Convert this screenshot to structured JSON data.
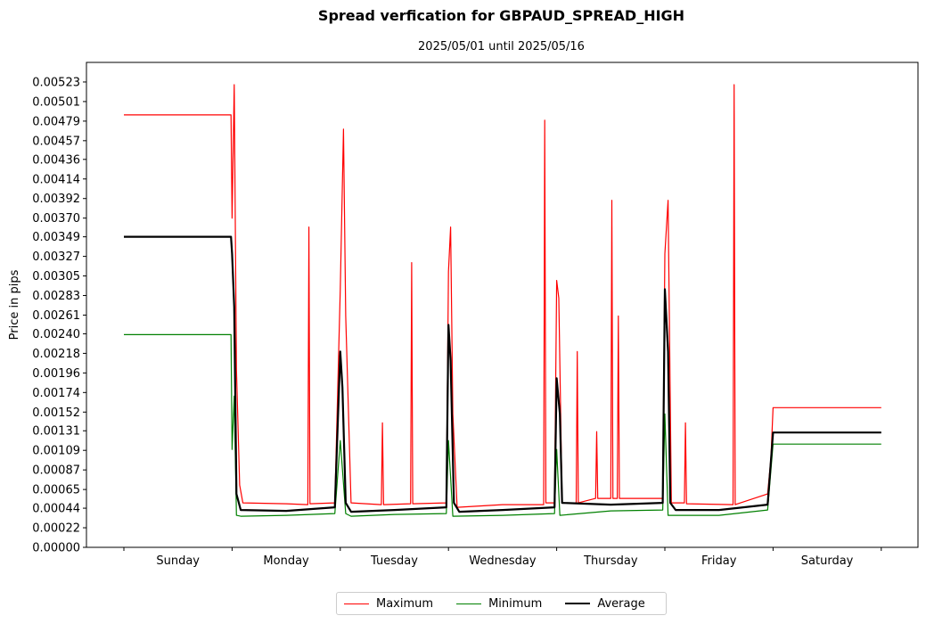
{
  "chart_data": {
    "type": "line",
    "title": "Spread verfication for GBPAUD_SPREAD_HIGH",
    "subtitle": "2025/05/01 until 2025/05/16",
    "xlabel": "",
    "ylabel": "Price in pips",
    "categories": [
      "Sunday",
      "Monday",
      "Tuesday",
      "Wednesday",
      "Thursday",
      "Friday",
      "Saturday"
    ],
    "xlim": [
      0,
      7
    ],
    "ylim": [
      0,
      0.00545
    ],
    "yticks": [
      "0.00000",
      "0.00022",
      "0.00044",
      "0.00065",
      "0.00087",
      "0.00109",
      "0.00131",
      "0.00152",
      "0.00174",
      "0.00196",
      "0.00218",
      "0.00240",
      "0.00261",
      "0.00283",
      "0.00305",
      "0.00327",
      "0.00349",
      "0.00370",
      "0.00392",
      "0.00414",
      "0.00436",
      "0.00457",
      "0.00479",
      "0.00501",
      "0.00523"
    ],
    "series": [
      {
        "name": "Maximum",
        "color": "#ff0000",
        "width": 1.2,
        "points": [
          [
            0,
            0.00486
          ],
          [
            0.99,
            0.00486
          ],
          [
            1.0,
            0.0037
          ],
          [
            1.02,
            0.0052
          ],
          [
            1.04,
            0.002
          ],
          [
            1.07,
            0.0007
          ],
          [
            1.1,
            0.0005
          ],
          [
            1.5,
            0.00049
          ],
          [
            1.7,
            0.00048
          ],
          [
            1.71,
            0.0036
          ],
          [
            1.72,
            0.00049
          ],
          [
            1.95,
            0.0005
          ],
          [
            2.0,
            0.0029
          ],
          [
            2.03,
            0.0047
          ],
          [
            2.05,
            0.0026
          ],
          [
            2.1,
            0.0005
          ],
          [
            2.38,
            0.00048
          ],
          [
            2.39,
            0.0014
          ],
          [
            2.4,
            0.00048
          ],
          [
            2.65,
            0.00049
          ],
          [
            2.66,
            0.0032
          ],
          [
            2.67,
            0.00049
          ],
          [
            2.98,
            0.0005
          ],
          [
            3.0,
            0.0031
          ],
          [
            3.02,
            0.0036
          ],
          [
            3.04,
            0.0015
          ],
          [
            3.08,
            0.00045
          ],
          [
            3.5,
            0.00048
          ],
          [
            3.88,
            0.00048
          ],
          [
            3.89,
            0.0048
          ],
          [
            3.9,
            0.0005
          ],
          [
            3.98,
            0.0005
          ],
          [
            4.0,
            0.003
          ],
          [
            4.02,
            0.0028
          ],
          [
            4.05,
            0.0005
          ],
          [
            4.18,
            0.0005
          ],
          [
            4.19,
            0.0022
          ],
          [
            4.2,
            0.0005
          ],
          [
            4.36,
            0.00055
          ],
          [
            4.37,
            0.0013
          ],
          [
            4.38,
            0.00055
          ],
          [
            4.5,
            0.00055
          ],
          [
            4.51,
            0.0039
          ],
          [
            4.52,
            0.00055
          ],
          [
            4.56,
            0.00055
          ],
          [
            4.57,
            0.0026
          ],
          [
            4.58,
            0.00055
          ],
          [
            4.98,
            0.00055
          ],
          [
            5.0,
            0.0033
          ],
          [
            5.03,
            0.0039
          ],
          [
            5.06,
            0.0005
          ],
          [
            5.18,
            0.0005
          ],
          [
            5.19,
            0.0014
          ],
          [
            5.2,
            0.00049
          ],
          [
            5.63,
            0.00048
          ],
          [
            5.64,
            0.0052
          ],
          [
            5.65,
            0.00048
          ],
          [
            5.95,
            0.0006
          ],
          [
            5.98,
            0.001
          ],
          [
            6.0,
            0.00157
          ],
          [
            7.0,
            0.00157
          ]
        ]
      },
      {
        "name": "Minimum",
        "color": "#008000",
        "width": 1.2,
        "points": [
          [
            0,
            0.00239
          ],
          [
            0.99,
            0.00239
          ],
          [
            1.0,
            0.0011
          ],
          [
            1.02,
            0.0017
          ],
          [
            1.04,
            0.00036
          ],
          [
            1.08,
            0.00035
          ],
          [
            1.5,
            0.00036
          ],
          [
            1.95,
            0.00038
          ],
          [
            2.0,
            0.0012
          ],
          [
            2.05,
            0.00038
          ],
          [
            2.1,
            0.00035
          ],
          [
            2.5,
            0.00037
          ],
          [
            2.98,
            0.00038
          ],
          [
            3.0,
            0.0012
          ],
          [
            3.04,
            0.00035
          ],
          [
            3.5,
            0.00036
          ],
          [
            3.98,
            0.00038
          ],
          [
            4.0,
            0.0011
          ],
          [
            4.03,
            0.00036
          ],
          [
            4.5,
            0.00041
          ],
          [
            4.98,
            0.00042
          ],
          [
            5.0,
            0.0015
          ],
          [
            5.03,
            0.00036
          ],
          [
            5.5,
            0.00036
          ],
          [
            5.95,
            0.00042
          ],
          [
            6.0,
            0.00116
          ],
          [
            7.0,
            0.00116
          ]
        ]
      },
      {
        "name": "Average",
        "color": "#000000",
        "width": 2.2,
        "points": [
          [
            0,
            0.00349
          ],
          [
            0.99,
            0.00349
          ],
          [
            1.0,
            0.0033
          ],
          [
            1.02,
            0.0027
          ],
          [
            1.04,
            0.0006
          ],
          [
            1.08,
            0.00042
          ],
          [
            1.5,
            0.00041
          ],
          [
            1.95,
            0.00045
          ],
          [
            2.0,
            0.0022
          ],
          [
            2.02,
            0.0018
          ],
          [
            2.05,
            0.0005
          ],
          [
            2.1,
            0.0004
          ],
          [
            2.5,
            0.00042
          ],
          [
            2.98,
            0.00045
          ],
          [
            3.0,
            0.0025
          ],
          [
            3.02,
            0.0021
          ],
          [
            3.05,
            0.0005
          ],
          [
            3.1,
            0.0004
          ],
          [
            3.5,
            0.00042
          ],
          [
            3.98,
            0.00045
          ],
          [
            4.0,
            0.0019
          ],
          [
            4.03,
            0.0015
          ],
          [
            4.05,
            0.0005
          ],
          [
            4.5,
            0.00048
          ],
          [
            4.98,
            0.0005
          ],
          [
            5.0,
            0.0029
          ],
          [
            5.03,
            0.0022
          ],
          [
            5.05,
            0.0005
          ],
          [
            5.1,
            0.00042
          ],
          [
            5.5,
            0.00042
          ],
          [
            5.95,
            0.00048
          ],
          [
            6.0,
            0.00129
          ],
          [
            7.0,
            0.00129
          ]
        ]
      }
    ]
  }
}
